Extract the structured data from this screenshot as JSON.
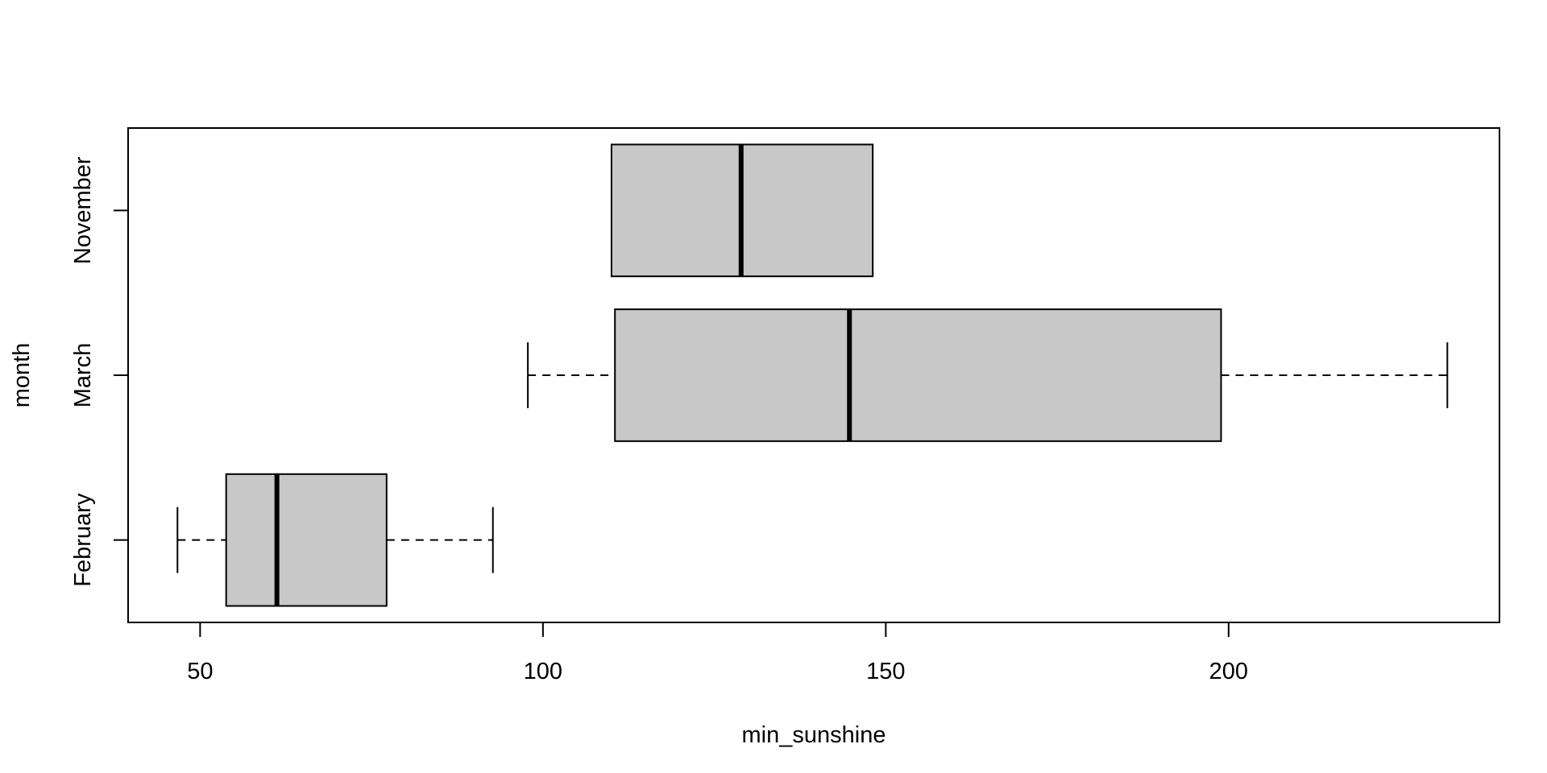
{
  "chart_data": {
    "type": "boxplot",
    "orientation": "horizontal",
    "xlabel": "min_sunshine",
    "ylabel": "month",
    "xlim": [
      39.5,
      239.5
    ],
    "x_ticks": [
      50,
      100,
      150,
      200
    ],
    "categories": [
      "February",
      "March",
      "November"
    ],
    "boxes": [
      {
        "category": "February",
        "whisker_low": 46.7,
        "q1": 53.8,
        "median": 61.2,
        "q3": 77.2,
        "whisker_high": 92.7
      },
      {
        "category": "March",
        "whisker_low": 97.8,
        "q1": 110.5,
        "median": 144.7,
        "q3": 198.9,
        "whisker_high": 231.9
      },
      {
        "category": "November",
        "q1": 110.0,
        "median": 128.9,
        "q3": 148.1
      }
    ],
    "box_fill": "#c8c8c8",
    "grid": false,
    "legend": "none"
  }
}
